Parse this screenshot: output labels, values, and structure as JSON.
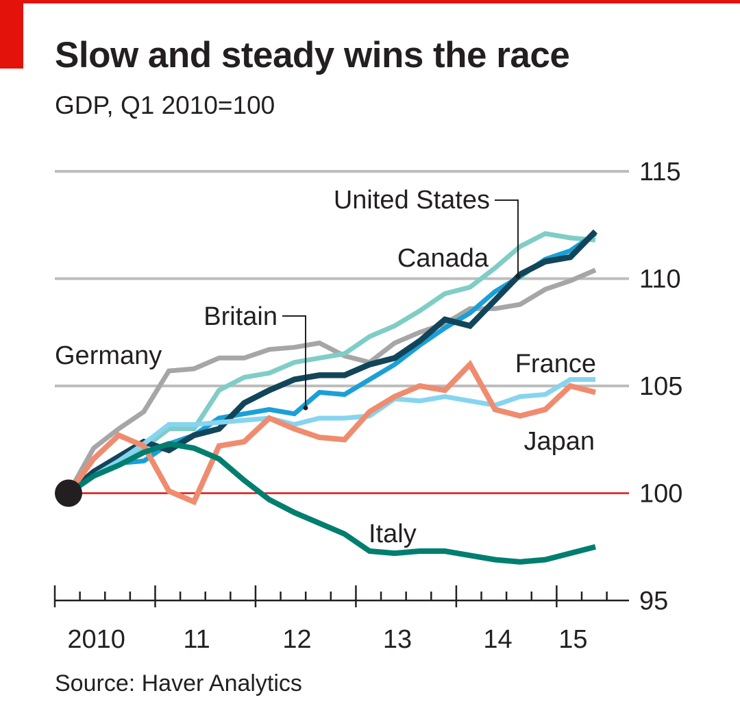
{
  "header": {
    "title": "Slow and steady wins the race",
    "subtitle": "GDP, Q1 2010=100",
    "source": "Source: Haver Analytics"
  },
  "colors": {
    "brand_red": "#e3120b",
    "gridline": "#bdbdbd",
    "baseline": "#e3120b",
    "axis": "#231f20",
    "origin_dot": "#231f20"
  },
  "chart_data": {
    "type": "line",
    "title": "Slow and steady wins the race",
    "subtitle": "GDP, Q1 2010=100",
    "xlabel": "",
    "ylabel": "",
    "x": [
      "2010Q1",
      "2010Q2",
      "2010Q3",
      "2010Q4",
      "2011Q1",
      "2011Q2",
      "2011Q3",
      "2011Q4",
      "2012Q1",
      "2012Q2",
      "2012Q3",
      "2012Q4",
      "2013Q1",
      "2013Q2",
      "2013Q3",
      "2013Q4",
      "2014Q1",
      "2014Q2",
      "2014Q3",
      "2014Q4",
      "2015Q1",
      "2015Q2"
    ],
    "x_tick_labels": [
      {
        "label": "2010",
        "x": "2010Q2"
      },
      {
        "label": "11",
        "x": "2011Q2"
      },
      {
        "label": "12",
        "x": "2012Q2"
      },
      {
        "label": "13",
        "x": "2013Q2"
      },
      {
        "label": "14",
        "x": "2014Q2"
      },
      {
        "label": "15",
        "x": "2015Q1"
      }
    ],
    "ylim": [
      95,
      115
    ],
    "y_ticks": [
      95,
      100,
      105,
      110,
      115
    ],
    "y_axis_side": "right",
    "grid": true,
    "baseline": 100,
    "series": [
      {
        "name": "Germany",
        "color": "#a6a6a6",
        "width": 7,
        "values": [
          100,
          102.1,
          103.0,
          103.8,
          105.7,
          105.8,
          106.3,
          106.3,
          106.7,
          106.8,
          107.0,
          106.4,
          106.1,
          107.0,
          107.5,
          107.9,
          108.6,
          108.6,
          108.8,
          109.5,
          109.9,
          110.4
        ]
      },
      {
        "name": "Canada",
        "color": "#7fcdc6",
        "width": 7,
        "values": [
          100,
          100.8,
          101.3,
          102.1,
          103.0,
          103.0,
          104.8,
          105.4,
          105.6,
          106.1,
          106.3,
          106.5,
          107.3,
          107.8,
          108.5,
          109.3,
          109.6,
          110.5,
          111.5,
          112.1,
          111.9,
          111.8
        ]
      },
      {
        "name": "Britain",
        "color": "#1aa0d6",
        "width": 7,
        "values": [
          100,
          101.0,
          101.4,
          101.5,
          102.3,
          102.7,
          103.5,
          103.7,
          103.9,
          103.7,
          104.7,
          104.6,
          105.3,
          106.0,
          106.9,
          107.7,
          108.4,
          109.4,
          110.1,
          110.9,
          111.3,
          112.1
        ]
      },
      {
        "name": "United States",
        "color": "#124559",
        "width": 8.5,
        "values": [
          100,
          101.0,
          101.7,
          102.4,
          102.0,
          102.7,
          103.0,
          104.2,
          104.8,
          105.3,
          105.5,
          105.5,
          106.0,
          106.3,
          107.1,
          108.1,
          107.8,
          109.0,
          110.2,
          110.8,
          111.0,
          112.2
        ]
      },
      {
        "name": "France",
        "color": "#87d4f0",
        "width": 7,
        "values": [
          100,
          100.8,
          101.5,
          102.3,
          103.2,
          103.2,
          103.3,
          103.4,
          103.5,
          103.2,
          103.5,
          103.5,
          103.6,
          104.4,
          104.3,
          104.5,
          104.3,
          104.1,
          104.5,
          104.6,
          105.3,
          105.3
        ]
      },
      {
        "name": "Japan",
        "color": "#ef8c6f",
        "width": 8,
        "values": [
          100,
          101.6,
          102.7,
          102.2,
          100.1,
          99.6,
          102.2,
          102.4,
          103.5,
          103.0,
          102.6,
          102.5,
          103.8,
          104.5,
          105.0,
          104.8,
          106.0,
          103.9,
          103.6,
          103.9,
          105.0,
          104.7
        ]
      },
      {
        "name": "Italy",
        "color": "#007e6f",
        "width": 8,
        "values": [
          100,
          100.8,
          101.3,
          101.9,
          102.3,
          102.1,
          101.6,
          100.6,
          99.7,
          99.1,
          98.6,
          98.1,
          97.3,
          97.2,
          97.3,
          97.3,
          97.1,
          96.9,
          96.8,
          96.9,
          97.2,
          97.5
        ]
      }
    ],
    "labels": [
      {
        "series": "United States",
        "text": "United States",
        "position": "above, leader line"
      },
      {
        "series": "Canada",
        "text": "Canada",
        "position": "above"
      },
      {
        "series": "Britain",
        "text": "Britain",
        "position": "above-left, leader line"
      },
      {
        "series": "Germany",
        "text": "Germany",
        "position": "left"
      },
      {
        "series": "France",
        "text": "France",
        "position": "above-right"
      },
      {
        "series": "Japan",
        "text": "Japan",
        "position": "below-right"
      },
      {
        "series": "Italy",
        "text": "Italy",
        "position": "above"
      }
    ]
  }
}
